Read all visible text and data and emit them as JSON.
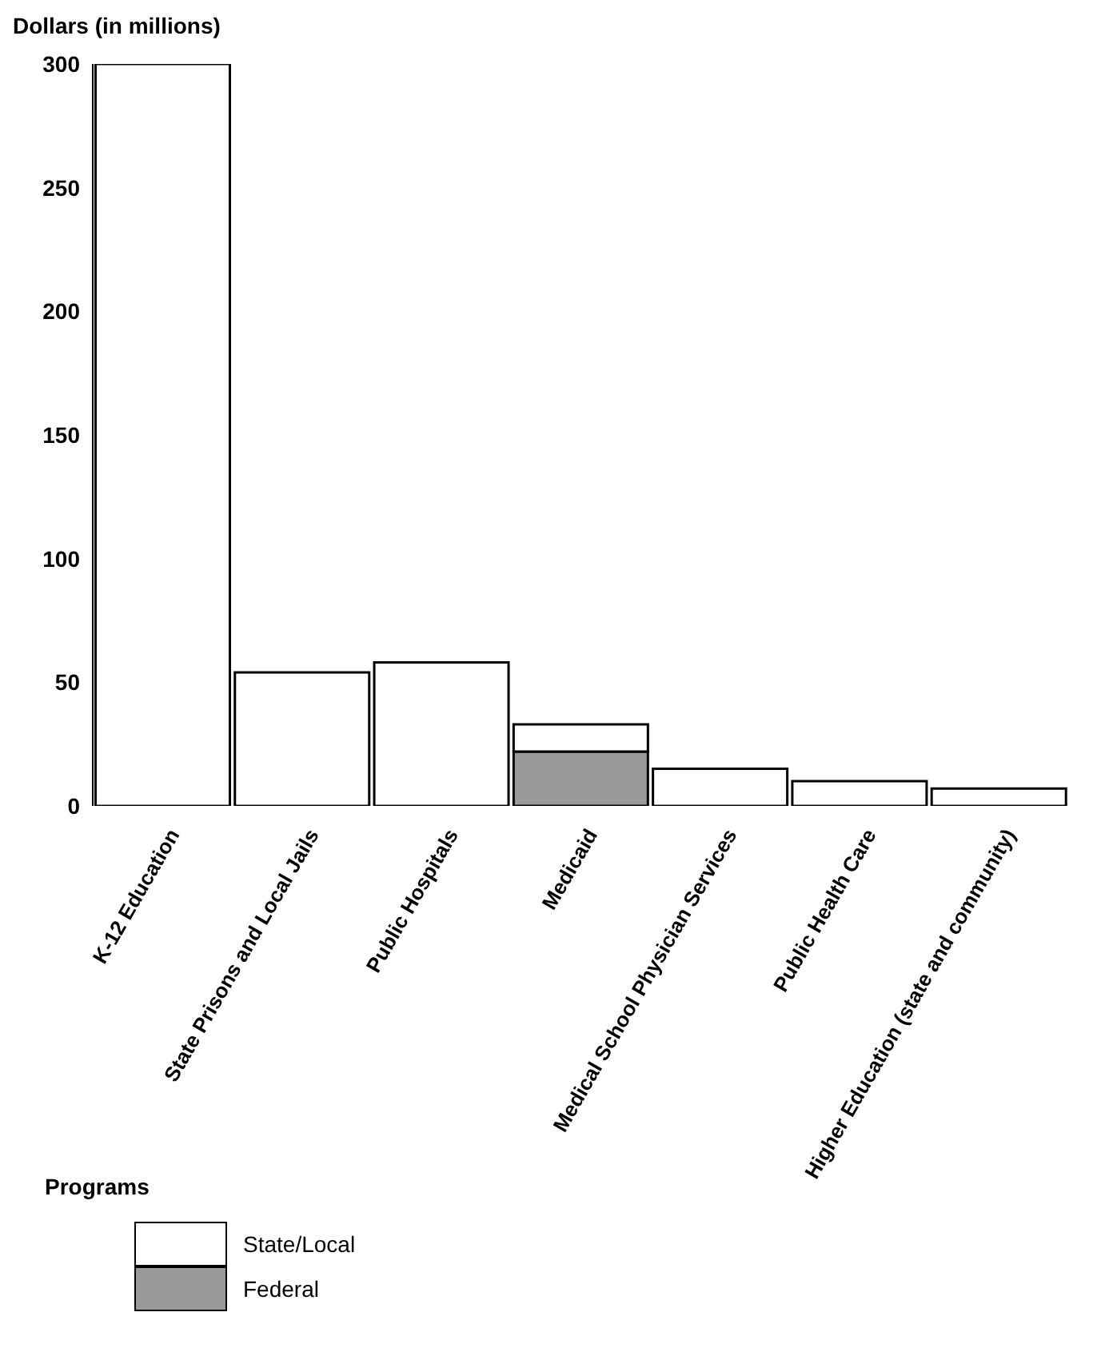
{
  "chart_data": {
    "type": "bar",
    "ylabel": "Dollars (in millions)",
    "legend_title": "Programs",
    "categories": [
      "K-12 Education",
      "State Prisons and Local Jails",
      "Public Hospitals",
      "Medicaid",
      "Medical School Physician Services",
      "Public Health Care",
      "Higher Education (state and community)"
    ],
    "stacked": true,
    "series": [
      {
        "name": "Federal",
        "color": "#9a9a9a",
        "values": [
          0,
          0,
          0,
          22,
          0,
          0,
          0
        ]
      },
      {
        "name": "State/Local",
        "color": "#ffffff",
        "values": [
          300,
          54,
          58,
          11,
          15,
          10,
          7
        ]
      }
    ],
    "ylim": [
      0,
      300
    ],
    "yticks": [
      0,
      50,
      100,
      150,
      200,
      250,
      300
    ],
    "grid": false,
    "legend": "bottom left"
  }
}
